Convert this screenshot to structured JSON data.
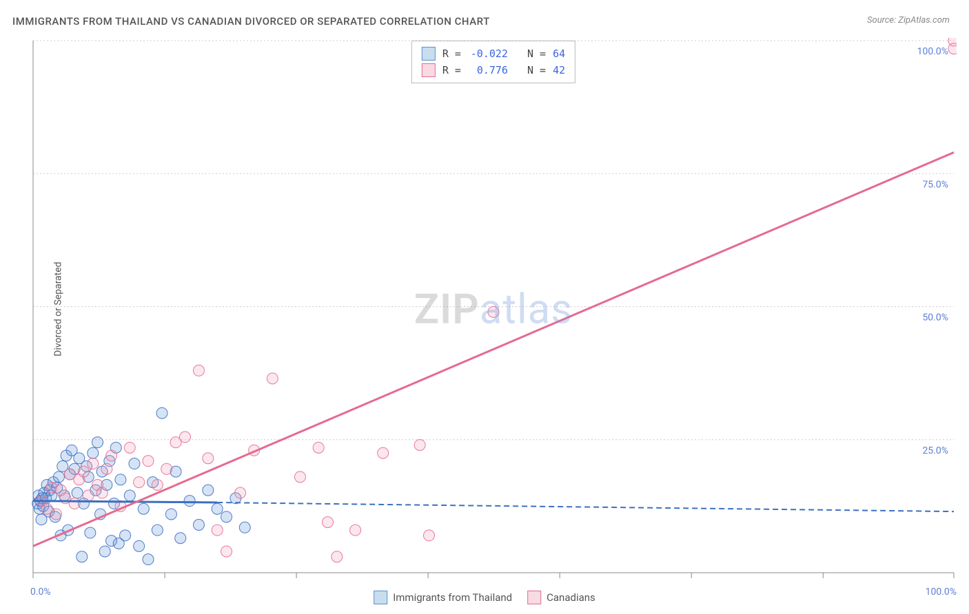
{
  "title": "IMMIGRANTS FROM THAILAND VS CANADIAN DIVORCED OR SEPARATED CORRELATION CHART",
  "source": "Source: ZipAtlas.com",
  "watermark": {
    "zip": "ZIP",
    "atlas": "atlas"
  },
  "yAxisLabel": "Divorced or Separated",
  "chart": {
    "type": "scatter",
    "xlim": [
      0,
      100
    ],
    "ylim": [
      0,
      100
    ],
    "xticks": [
      0,
      14.3,
      28.6,
      42.9,
      57.2,
      71.5,
      85.8,
      100
    ],
    "yticks": [
      0,
      25,
      50,
      75,
      100
    ],
    "xtick_labels_shown": {
      "0": "0.0%",
      "100": "100.0%"
    },
    "ytick_labels": [
      "",
      "25.0%",
      "50.0%",
      "75.0%",
      "100.0%"
    ],
    "background_color": "#ffffff",
    "grid_color": "#cccccc",
    "axis_color": "#888888",
    "label_color": "#5b7fd6",
    "marker_radius": 8,
    "marker_fill_opacity": 0.25,
    "marker_stroke_opacity": 0.9,
    "series": [
      {
        "name": "Immigrants from Thailand",
        "color": "#5b8fd6",
        "stroke": "#3a6fc0",
        "R": "-0.022",
        "N": "64",
        "trend": {
          "x1": 0,
          "y1": 13.5,
          "x2": 20,
          "y2": 13.2,
          "solid_until_x": 20,
          "extend_to_x": 100,
          "extend_y": 11.5
        },
        "points": [
          [
            0.5,
            13
          ],
          [
            0.6,
            14.5
          ],
          [
            0.7,
            12
          ],
          [
            0.8,
            13.5
          ],
          [
            0.9,
            10
          ],
          [
            1.0,
            14
          ],
          [
            1.1,
            12.5
          ],
          [
            1.2,
            15
          ],
          [
            1.4,
            14
          ],
          [
            1.5,
            16.5
          ],
          [
            1.7,
            11.5
          ],
          [
            1.8,
            15.5
          ],
          [
            2.0,
            14.5
          ],
          [
            2.2,
            17
          ],
          [
            2.4,
            10.5
          ],
          [
            2.6,
            16
          ],
          [
            2.8,
            18
          ],
          [
            3.0,
            7
          ],
          [
            3.2,
            20
          ],
          [
            3.4,
            14.5
          ],
          [
            3.6,
            22
          ],
          [
            3.8,
            8
          ],
          [
            4.0,
            18.5
          ],
          [
            4.2,
            23
          ],
          [
            4.5,
            19.5
          ],
          [
            4.8,
            15
          ],
          [
            5.0,
            21.5
          ],
          [
            5.3,
            3
          ],
          [
            5.5,
            13
          ],
          [
            5.8,
            20
          ],
          [
            6.0,
            18
          ],
          [
            6.2,
            7.5
          ],
          [
            6.5,
            22.5
          ],
          [
            6.8,
            15.5
          ],
          [
            7.0,
            24.5
          ],
          [
            7.3,
            11
          ],
          [
            7.5,
            19
          ],
          [
            7.8,
            4
          ],
          [
            8.0,
            16.5
          ],
          [
            8.3,
            21
          ],
          [
            8.5,
            6
          ],
          [
            8.8,
            13
          ],
          [
            9.0,
            23.5
          ],
          [
            9.3,
            5.5
          ],
          [
            9.5,
            17.5
          ],
          [
            10.0,
            7
          ],
          [
            10.5,
            14.5
          ],
          [
            11.0,
            20.5
          ],
          [
            11.5,
            5
          ],
          [
            12.0,
            12
          ],
          [
            12.5,
            2.5
          ],
          [
            13.0,
            17
          ],
          [
            13.5,
            8
          ],
          [
            14.0,
            30
          ],
          [
            15.0,
            11
          ],
          [
            15.5,
            19
          ],
          [
            16.0,
            6.5
          ],
          [
            17.0,
            13.5
          ],
          [
            18.0,
            9
          ],
          [
            19.0,
            15.5
          ],
          [
            20.0,
            12
          ],
          [
            21.0,
            10.5
          ],
          [
            22.0,
            14
          ],
          [
            23.0,
            8.5
          ]
        ]
      },
      {
        "name": "Canadians",
        "color": "#f0a0b8",
        "stroke": "#e56a8f",
        "R": "0.776",
        "N": "42",
        "trend": {
          "x1": 0,
          "y1": 5,
          "x2": 100,
          "y2": 79
        },
        "points": [
          [
            1.0,
            13.5
          ],
          [
            1.5,
            12
          ],
          [
            2.0,
            16
          ],
          [
            2.5,
            11
          ],
          [
            3.0,
            15.5
          ],
          [
            3.5,
            14
          ],
          [
            4.0,
            18.5
          ],
          [
            4.5,
            13
          ],
          [
            5.0,
            17.5
          ],
          [
            5.5,
            19
          ],
          [
            6.0,
            14.5
          ],
          [
            6.5,
            20.5
          ],
          [
            7.0,
            16.5
          ],
          [
            7.5,
            15
          ],
          [
            8.0,
            19.5
          ],
          [
            8.5,
            22
          ],
          [
            9.5,
            12.5
          ],
          [
            10.5,
            23.5
          ],
          [
            11.5,
            17
          ],
          [
            12.5,
            21
          ],
          [
            13.5,
            16.5
          ],
          [
            14.5,
            19.5
          ],
          [
            15.5,
            24.5
          ],
          [
            16.5,
            25.5
          ],
          [
            18.0,
            38
          ],
          [
            19.0,
            21.5
          ],
          [
            20.0,
            8
          ],
          [
            21.0,
            4
          ],
          [
            22.5,
            15
          ],
          [
            24.0,
            23
          ],
          [
            26.0,
            36.5
          ],
          [
            29.0,
            18
          ],
          [
            31.0,
            23.5
          ],
          [
            32.0,
            9.5
          ],
          [
            33.0,
            3
          ],
          [
            35.0,
            8
          ],
          [
            38.0,
            22.5
          ],
          [
            42.0,
            24
          ],
          [
            43.0,
            7
          ],
          [
            50.0,
            49
          ],
          [
            100.0,
            100
          ],
          [
            100.0,
            98.5
          ]
        ]
      }
    ]
  },
  "topLegend": {
    "rows": [
      {
        "swatch_fill": "#c8deee",
        "swatch_stroke": "#5b8fd6",
        "rLabel": "R =",
        "rValue": "-0.022",
        "nLabel": "N =",
        "nValue": "64"
      },
      {
        "swatch_fill": "#f8dae3",
        "swatch_stroke": "#e56a8f",
        "rLabel": "R =",
        "rValue": "0.776",
        "nLabel": "N =",
        "nValue": "42"
      }
    ]
  },
  "bottomLegend": [
    {
      "swatch_fill": "#c8deee",
      "swatch_stroke": "#5b8fd6",
      "label": "Immigrants from Thailand"
    },
    {
      "swatch_fill": "#f8dae3",
      "swatch_stroke": "#e56a8f",
      "label": "Canadians"
    }
  ]
}
